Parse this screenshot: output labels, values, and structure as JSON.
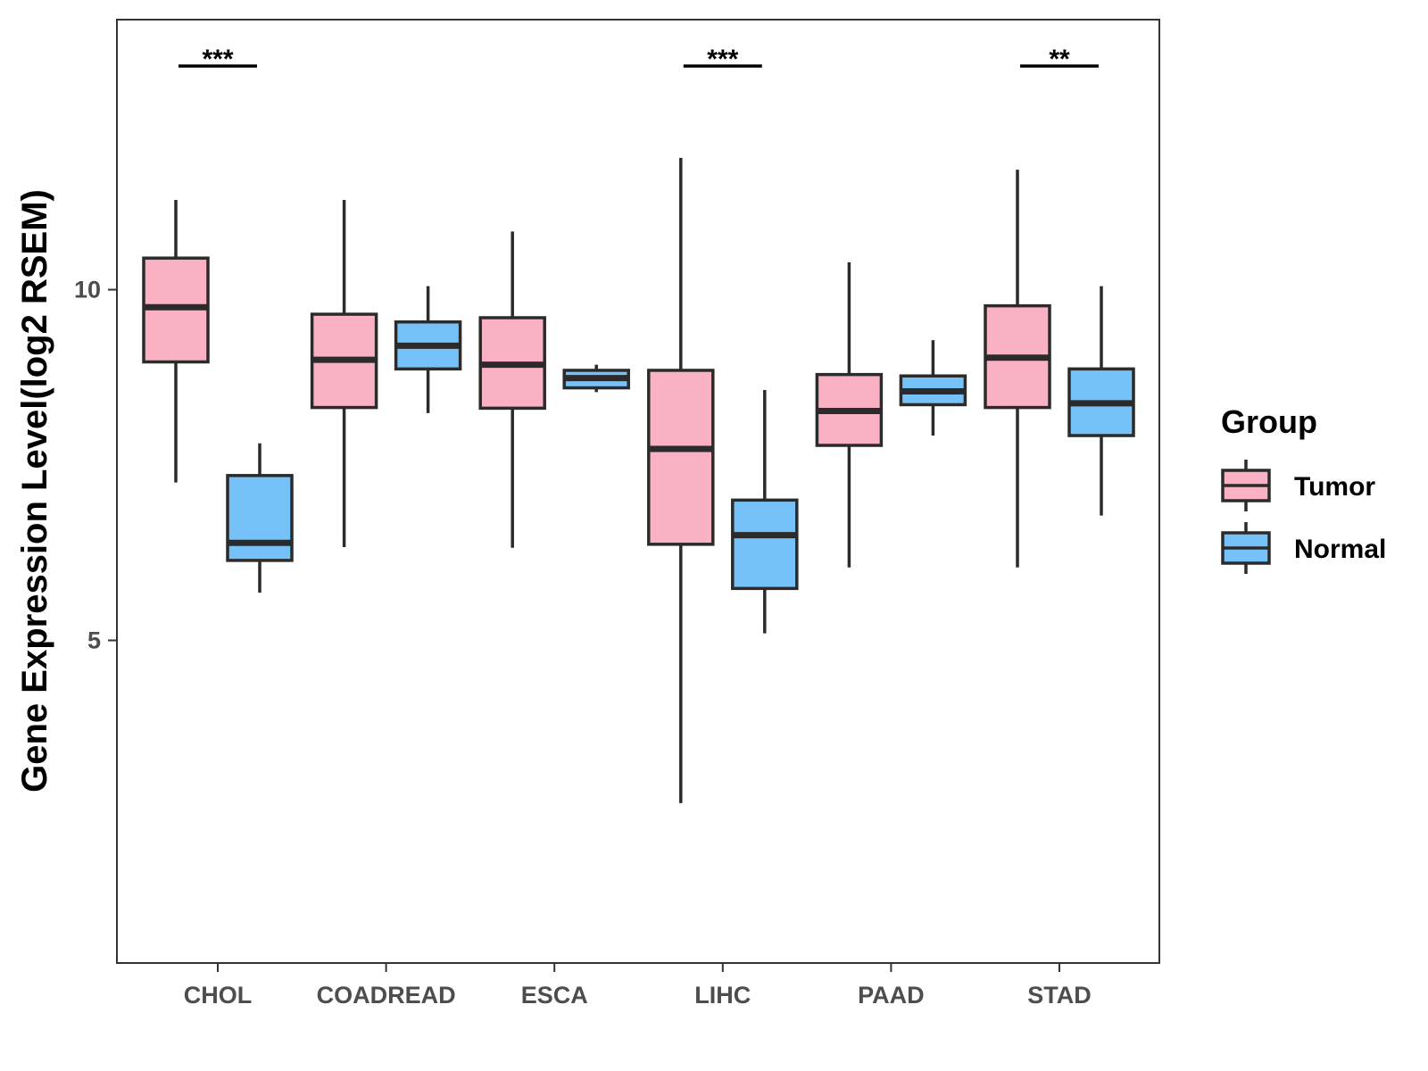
{
  "chart_data": {
    "type": "boxplot",
    "title": "",
    "xlabel": "",
    "ylabel": "Gene Expression Level(log2 RSEM)",
    "ylim": [
      0.4,
      13.85
    ],
    "yticks": [
      5,
      10
    ],
    "ytick_labels": [
      "5",
      "10"
    ],
    "categories": [
      "CHOL",
      "COADREAD",
      "ESCA",
      "LIHC",
      "PAAD",
      "STAD"
    ],
    "legend": {
      "title": "Group",
      "position": "right"
    },
    "series": [
      {
        "name": "Tumor",
        "color": "#FBB1C4",
        "boxes": [
          {
            "min": 7.25,
            "q1": 8.97,
            "median": 9.75,
            "q3": 10.45,
            "max": 11.28
          },
          {
            "min": 6.33,
            "q1": 8.32,
            "median": 9.0,
            "q3": 9.65,
            "max": 11.28
          },
          {
            "min": 6.32,
            "q1": 8.31,
            "median": 8.93,
            "q3": 9.6,
            "max": 10.83
          },
          {
            "min": 2.68,
            "q1": 6.37,
            "median": 7.73,
            "q3": 8.85,
            "max": 11.88
          },
          {
            "min": 6.04,
            "q1": 7.78,
            "median": 8.27,
            "q3": 8.79,
            "max": 10.39
          },
          {
            "min": 6.04,
            "q1": 8.32,
            "median": 9.03,
            "q3": 9.77,
            "max": 11.71
          }
        ]
      },
      {
        "name": "Normal",
        "color": "#76C1F7",
        "boxes": [
          {
            "min": 5.68,
            "q1": 6.14,
            "median": 6.39,
            "q3": 7.35,
            "max": 7.81
          },
          {
            "min": 8.24,
            "q1": 8.87,
            "median": 9.2,
            "q3": 9.54,
            "max": 10.05
          },
          {
            "min": 8.54,
            "q1": 8.6,
            "median": 8.74,
            "q3": 8.85,
            "max": 8.93
          },
          {
            "min": 5.1,
            "q1": 5.74,
            "median": 6.5,
            "q3": 7.0,
            "max": 8.57
          },
          {
            "min": 7.92,
            "q1": 8.36,
            "median": 8.55,
            "q3": 8.77,
            "max": 9.28
          },
          {
            "min": 6.78,
            "q1": 7.92,
            "median": 8.38,
            "q3": 8.87,
            "max": 10.05
          }
        ]
      }
    ],
    "significance": [
      {
        "category": "CHOL",
        "label": "***"
      },
      {
        "category": "LIHC",
        "label": "***"
      },
      {
        "category": "STAD",
        "label": "**"
      }
    ]
  }
}
